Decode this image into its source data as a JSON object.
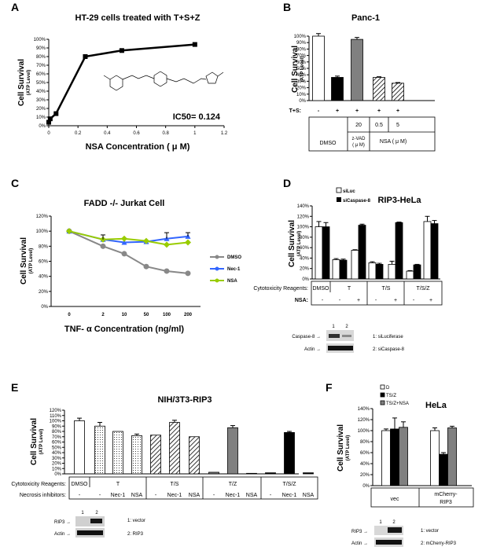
{
  "figure": {
    "panel_labels": [
      "A",
      "B",
      "C",
      "D",
      "E",
      "F"
    ],
    "y_label": "Cell Survival",
    "y_sublabel": "(ATP Level)"
  },
  "chart_data": [
    {
      "id": "A",
      "type": "line",
      "title": "HT-29 cells treated with T+S+Z",
      "xlabel": "NSA Concentration ( μ M)",
      "xlim": [
        0,
        1.2
      ],
      "xticks": [
        0,
        0.2,
        0.4,
        0.6,
        0.8,
        1,
        1.2
      ],
      "ylim": [
        0,
        100
      ],
      "yticks": [
        0,
        10,
        20,
        30,
        40,
        50,
        60,
        70,
        80,
        90,
        100
      ],
      "annotation": "IC50= 0.124",
      "series": [
        {
          "x": [
            0,
            0.01,
            0.05,
            0.25,
            0.5,
            1
          ],
          "y": [
            4,
            8,
            14,
            80,
            87,
            94
          ]
        }
      ]
    },
    {
      "id": "B",
      "type": "bar",
      "title": "Panc-1",
      "ylim": [
        0,
        100
      ],
      "yticks": [
        0,
        10,
        20,
        30,
        40,
        50,
        60,
        70,
        80,
        90,
        100
      ],
      "values": [
        100,
        36,
        95,
        36,
        27
      ],
      "errors": [
        4,
        2,
        3,
        1,
        1
      ],
      "fills": [
        "white",
        "black",
        "gray",
        "hatch",
        "hatch"
      ],
      "table": {
        "row1_label": "T+S:",
        "row1": [
          "-",
          "+",
          "+",
          "+",
          "+"
        ],
        "row2": [
          "20",
          "0.5",
          "5"
        ],
        "row3": [
          "DMSO",
          "z-VAD\n( μ M)",
          "NSA ( μ  M)"
        ]
      }
    },
    {
      "id": "C",
      "type": "line",
      "title": "FADD -/- Jurkat Cell",
      "xlabel": "TNF- α Concentration (ng/ml)",
      "categories": [
        "0",
        "2",
        "10",
        "50",
        "100",
        "200"
      ],
      "ylim": [
        0,
        120
      ],
      "yticks": [
        0,
        20,
        40,
        60,
        80,
        100,
        120
      ],
      "series": [
        {
          "name": "DMSO",
          "values": [
            100,
            80,
            70,
            53,
            47,
            44
          ],
          "color": "#888888"
        },
        {
          "name": "Nec-1",
          "values": [
            100,
            89,
            85,
            86,
            90,
            93
          ],
          "color": "#3366ff"
        },
        {
          "name": "NSA",
          "values": [
            100,
            89,
            90,
            87,
            82,
            85
          ],
          "color": "#99cc00"
        }
      ]
    },
    {
      "id": "D",
      "type": "bar",
      "title": "RIP3-HeLa",
      "ylim": [
        0,
        140
      ],
      "yticks": [
        0,
        20,
        40,
        60,
        80,
        100,
        120,
        140
      ],
      "legend": [
        "siLuc",
        "siCaspase-8"
      ],
      "groups": [
        {
          "values": [
            100,
            100
          ],
          "errors": [
            10,
            8
          ]
        },
        {
          "values": [
            37,
            36
          ],
          "errors": [
            2,
            2
          ]
        },
        {
          "values": [
            55,
            103
          ],
          "errors": [
            1,
            2
          ]
        },
        {
          "values": [
            31,
            28
          ],
          "errors": [
            2,
            2
          ]
        },
        {
          "values": [
            28,
            108
          ],
          "errors": [
            6,
            1
          ]
        },
        {
          "values": [
            15,
            27
          ],
          "errors": [
            1,
            1
          ]
        },
        {
          "values": [
            110,
            106
          ],
          "errors": [
            10,
            6
          ]
        }
      ],
      "table": {
        "row1_label": "Cytotoxicity Reagents:",
        "row1": [
          "DMSO",
          "T",
          "T/S",
          "T/S/Z"
        ],
        "row2_label": "NSA:",
        "row2": [
          "-",
          "-",
          "+",
          "-",
          "+",
          "-",
          "+"
        ]
      },
      "blot": {
        "lanes": [
          "1",
          "2"
        ],
        "rows": [
          "Caspase-8",
          "Actin"
        ],
        "key": [
          "1: siLuciferase",
          "2: siCaspase-8"
        ]
      }
    },
    {
      "id": "E",
      "type": "bar",
      "title": "NIH/3T3-RIP3",
      "ylim": [
        0,
        120
      ],
      "yticks": [
        0,
        10,
        20,
        30,
        40,
        50,
        60,
        70,
        80,
        90,
        100,
        110,
        120
      ],
      "values": [
        100,
        90,
        80,
        72,
        73,
        97,
        70,
        3,
        87,
        1,
        2,
        78,
        2
      ],
      "errors": [
        5,
        7,
        0,
        3,
        0,
        4,
        0,
        0,
        4,
        0,
        0,
        2,
        0
      ],
      "fills": [
        "white",
        "dots",
        "dots",
        "dots",
        "hatch",
        "hatch",
        "hatch",
        "gray",
        "gray",
        "gray",
        "black",
        "black",
        "black"
      ],
      "table": {
        "row1_label": "Cytotoxicity Reagents:",
        "row1": [
          "DMSO",
          "T",
          "T/S",
          "T/Z",
          "T/S/Z"
        ],
        "row2_label": "Necrosis inhibitors:",
        "row2": [
          "-",
          "-",
          "Nec-1",
          "NSA",
          "-",
          "Nec-1",
          "NSA",
          "-",
          "Nec-1",
          "NSA",
          "-",
          "Nec-1",
          "NSA"
        ]
      },
      "blot": {
        "lanes": [
          "1",
          "2"
        ],
        "rows": [
          "RIP3",
          "Actin"
        ],
        "key": [
          "1: vector",
          "2: RIP3"
        ]
      }
    },
    {
      "id": "F",
      "type": "bar",
      "title": "HeLa",
      "ylim": [
        0,
        140
      ],
      "yticks": [
        0,
        20,
        40,
        60,
        80,
        100,
        120,
        140
      ],
      "legend": [
        "D",
        "TS/Z",
        "TS/Z+NSA"
      ],
      "groups": [
        {
          "name": "vec",
          "values": [
            100,
            103,
            106
          ],
          "errors": [
            3,
            20,
            10
          ]
        },
        {
          "name": "mCherry-\nRIP3",
          "values": [
            100,
            57,
            105
          ],
          "errors": [
            5,
            3,
            3
          ]
        }
      ],
      "blot": {
        "lanes": [
          "1",
          "2"
        ],
        "rows": [
          "RIP3",
          "Actin"
        ],
        "key": [
          "1: vector",
          "2: mCherry-RIP3"
        ]
      }
    }
  ]
}
